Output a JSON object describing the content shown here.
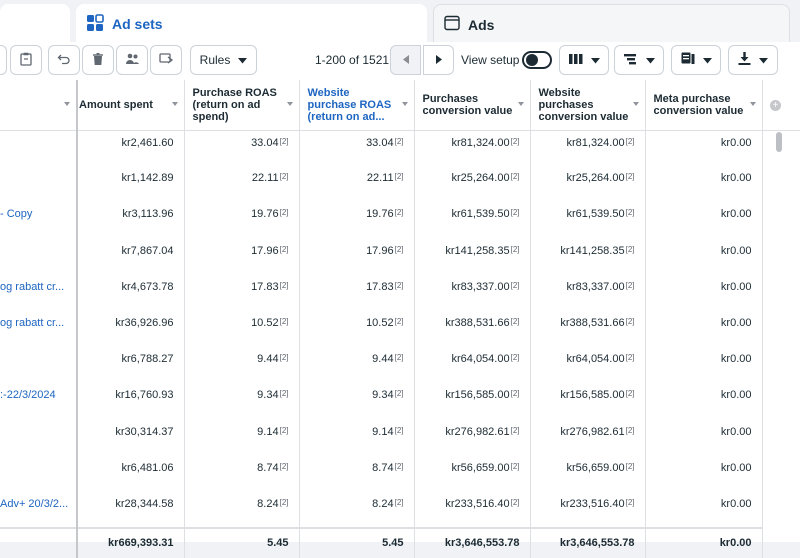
{
  "tabs": {
    "adsets_label": "Ad sets",
    "ads_label": "Ads"
  },
  "toolbar": {
    "rules_label": "Rules",
    "pagination": "1-200 of 1521",
    "view_setup_label": "View setup"
  },
  "table": {
    "columns": [
      {
        "label": "",
        "key": "name"
      },
      {
        "label": "Amount spent",
        "key": "amount_spent"
      },
      {
        "label": "Purchase ROAS (return on ad spend)",
        "key": "purchase_roas"
      },
      {
        "label": "Website purchase ROAS (return on ad...",
        "key": "website_roas"
      },
      {
        "label": "Purchases conversion value",
        "key": "purchases_value"
      },
      {
        "label": "Website purchases conversion value",
        "key": "website_value"
      },
      {
        "label": "Meta purchase conversion value",
        "key": "meta_value"
      }
    ],
    "footnote_marker": "[2]",
    "rows": [
      {
        "name": "",
        "amount_spent": "kr2,461.60",
        "purchase_roas": "33.04",
        "website_roas": "33.04",
        "purchases_value": "kr81,324.00",
        "website_value": "kr81,324.00",
        "meta_value": "kr0.00"
      },
      {
        "name": "",
        "amount_spent": "kr1,142.89",
        "purchase_roas": "22.11",
        "website_roas": "22.11",
        "purchases_value": "kr25,264.00",
        "website_value": "kr25,264.00",
        "meta_value": "kr0.00"
      },
      {
        "name": "- Copy",
        "amount_spent": "kr3,113.96",
        "purchase_roas": "19.76",
        "website_roas": "19.76",
        "purchases_value": "kr61,539.50",
        "website_value": "kr61,539.50",
        "meta_value": "kr0.00"
      },
      {
        "name": "",
        "amount_spent": "kr7,867.04",
        "purchase_roas": "17.96",
        "website_roas": "17.96",
        "purchases_value": "kr141,258.35",
        "website_value": "kr141,258.35",
        "meta_value": "kr0.00"
      },
      {
        "name": "og rabatt cr...",
        "amount_spent": "kr4,673.78",
        "purchase_roas": "17.83",
        "website_roas": "17.83",
        "purchases_value": "kr83,337.00",
        "website_value": "kr83,337.00",
        "meta_value": "kr0.00"
      },
      {
        "name": "og rabatt cr...",
        "amount_spent": "kr36,926.96",
        "purchase_roas": "10.52",
        "website_roas": "10.52",
        "purchases_value": "kr388,531.66",
        "website_value": "kr388,531.66",
        "meta_value": "kr0.00"
      },
      {
        "name": "",
        "amount_spent": "kr6,788.27",
        "purchase_roas": "9.44",
        "website_roas": "9.44",
        "purchases_value": "kr64,054.00",
        "website_value": "kr64,054.00",
        "meta_value": "kr0.00"
      },
      {
        "name": ":-22/3/2024",
        "amount_spent": "kr16,760.93",
        "purchase_roas": "9.34",
        "website_roas": "9.34",
        "purchases_value": "kr156,585.00",
        "website_value": "kr156,585.00",
        "meta_value": "kr0.00"
      },
      {
        "name": "",
        "amount_spent": "kr30,314.37",
        "purchase_roas": "9.14",
        "website_roas": "9.14",
        "purchases_value": "kr276,982.61",
        "website_value": "kr276,982.61",
        "meta_value": "kr0.00"
      },
      {
        "name": "",
        "amount_spent": "kr6,481.06",
        "purchase_roas": "8.74",
        "website_roas": "8.74",
        "purchases_value": "kr56,659.00",
        "website_value": "kr56,659.00",
        "meta_value": "kr0.00"
      },
      {
        "name": "Adv+ 20/3/2...",
        "amount_spent": "kr28,344.58",
        "purchase_roas": "8.24",
        "website_roas": "8.24",
        "purchases_value": "kr233,516.40",
        "website_value": "kr233,516.40",
        "meta_value": "kr0.00"
      }
    ],
    "totals": {
      "name": "",
      "amount_spent": "kr669,393.31",
      "purchase_roas": "5.45",
      "website_roas": "5.45",
      "purchases_value": "kr3,646,553.78",
      "website_value": "kr3,646,553.78",
      "meta_value": "kr0.00"
    }
  },
  "icons": [
    "grid-icon",
    "window-icon",
    "clipboard-icon",
    "undo-icon",
    "trash-icon",
    "people-icon",
    "duplicate-icon",
    "caret-down-icon",
    "chevron-left-icon",
    "chevron-right-icon",
    "columns-icon",
    "breakdown-icon",
    "reports-icon",
    "export-icon",
    "add-column-icon"
  ],
  "colors": {
    "accent": "#1d65c1",
    "text": "#1c2b33",
    "border": "#dddfe2"
  }
}
